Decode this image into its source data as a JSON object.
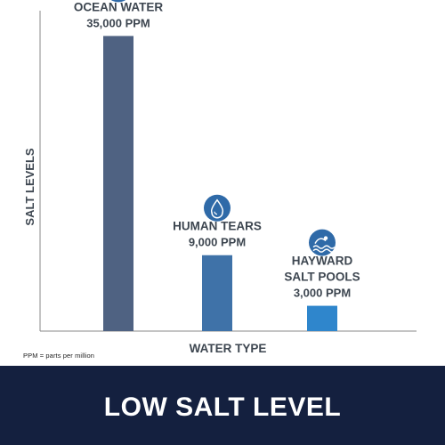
{
  "chart_data": {
    "type": "bar",
    "categories": [
      "OCEAN WATER",
      "HUMAN TEARS",
      "HAYWARD SALT POOLS"
    ],
    "category_lines": [
      [
        "OCEAN WATER"
      ],
      [
        "HUMAN TEARS"
      ],
      [
        "HAYWARD",
        "SALT POOLS"
      ]
    ],
    "value_labels": [
      "35,000 PPM",
      "9,000 PPM",
      "3,000 PPM"
    ],
    "values": [
      35000,
      9000,
      3000
    ],
    "bar_colors": [
      "#4f6282",
      "#3f72a8",
      "#2f86cc"
    ],
    "icons": [
      "waves-icon",
      "water-drop-icon",
      "pool-swimmer-icon"
    ],
    "icon_color": "#2f6aa8",
    "xlabel": "WATER TYPE",
    "ylabel": "SALT LEVELS",
    "ylim": [
      0,
      38000
    ],
    "grid": false
  },
  "footnote": "PPM = parts per million",
  "banner": {
    "text": "LOW SALT LEVEL",
    "color": "#14203f"
  }
}
